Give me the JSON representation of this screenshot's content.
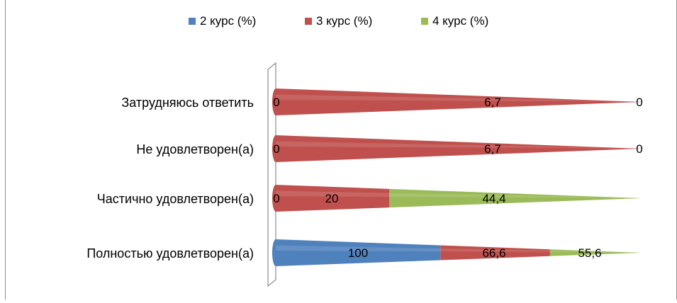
{
  "chart_data": {
    "type": "bar",
    "orientation": "horizontal",
    "stacked": true,
    "style": "3d-cone",
    "categories": [
      "Затрудняюсь ответить",
      "Не удовлетворен(а)",
      "Частично удовлетворен(а)",
      "Полностью удовлетворен(а)"
    ],
    "series": [
      {
        "name": "2 курс (%)",
        "color": "#4F81BD",
        "values": [
          0,
          0,
          0,
          100
        ]
      },
      {
        "name": "3 курс (%)",
        "color": "#C0504D",
        "values": [
          6.7,
          6.7,
          20,
          66.6
        ]
      },
      {
        "name": "4 курс (%)",
        "color": "#9BBB59",
        "values": [
          0,
          0,
          44.4,
          55.6
        ]
      }
    ],
    "data_labels": [
      [
        "0",
        "6,7",
        "0"
      ],
      [
        "0",
        "6,7",
        "0"
      ],
      [
        "0",
        "20",
        "44,4"
      ],
      [
        "100",
        "66,6",
        "55,6"
      ]
    ],
    "legend_position": "top",
    "grid": false
  }
}
